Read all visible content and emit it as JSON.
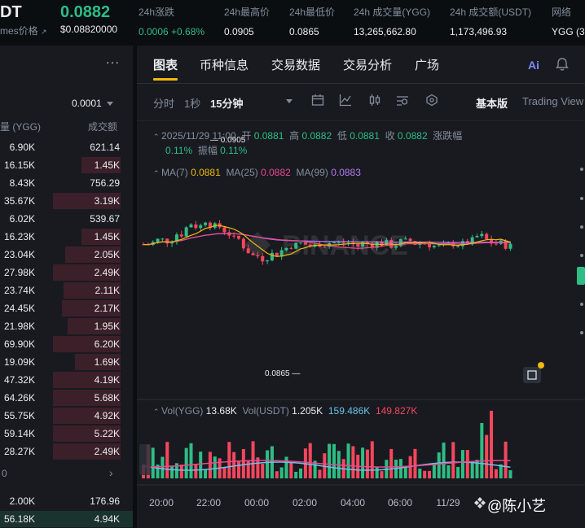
{
  "ticker": {
    "symbol": "DT",
    "subname": "mes价格",
    "price": "0.0882",
    "price_usd": "$0.08820000",
    "stats": [
      {
        "label": "24h涨跌",
        "value": "0.0006 +0.68%",
        "green": true
      },
      {
        "label": "24h最高价",
        "value": "0.0905"
      },
      {
        "label": "24h最低价",
        "value": "0.0865"
      },
      {
        "label": "24h 成交量(YGG)",
        "value": "13,265,662.80"
      },
      {
        "label": "24h 成交额(USDT)",
        "value": "1,173,496.93"
      },
      {
        "label": "网络",
        "value": "YGG (3"
      }
    ]
  },
  "orderbook": {
    "menu": "···",
    "precision": "0.0001",
    "header_qty": "量 (YGG)",
    "header_total": "成交额",
    "asks": [
      {
        "qty": "6.90K",
        "total": "621.14",
        "depth": 0
      },
      {
        "qty": "16.15K",
        "total": "1.45K",
        "depth": 0.58
      },
      {
        "qty": "8.43K",
        "total": "756.29",
        "depth": 0
      },
      {
        "qty": "35.67K",
        "total": "3.19K",
        "depth": 1
      },
      {
        "qty": "6.02K",
        "total": "539.67",
        "depth": 0
      },
      {
        "qty": "16.23K",
        "total": "1.45K",
        "depth": 0.58
      },
      {
        "qty": "23.04K",
        "total": "2.05K",
        "depth": 0.82
      },
      {
        "qty": "27.98K",
        "total": "2.49K",
        "depth": 1
      },
      {
        "qty": "23.74K",
        "total": "2.11K",
        "depth": 0.84
      },
      {
        "qty": "24.45K",
        "total": "2.17K",
        "depth": 0.87
      },
      {
        "qty": "21.98K",
        "total": "1.95K",
        "depth": 0.78
      },
      {
        "qty": "69.90K",
        "total": "6.20K",
        "depth": 1
      },
      {
        "qty": "19.09K",
        "total": "1.69K",
        "depth": 0.68
      },
      {
        "qty": "47.32K",
        "total": "4.19K",
        "depth": 1
      },
      {
        "qty": "64.26K",
        "total": "5.68K",
        "depth": 1
      },
      {
        "qty": "55.75K",
        "total": "4.92K",
        "depth": 1
      },
      {
        "qty": "59.14K",
        "total": "5.22K",
        "depth": 1
      },
      {
        "qty": "28.27K",
        "total": "2.49K",
        "depth": 1
      }
    ],
    "mid_label": "0",
    "mid_chevron": "›",
    "bids": [
      {
        "qty": "2.00K",
        "total": "176.96",
        "depth": 0
      },
      {
        "qty": "56.18K",
        "total": "4.94K",
        "depth": 1
      }
    ]
  },
  "tabs": [
    "图表",
    "币种信息",
    "交易数据",
    "交易分析",
    "广场"
  ],
  "ai_label": "Ai",
  "toolbar": {
    "intervals": [
      "分时",
      "1秒",
      "15分钟"
    ],
    "active_interval": "15分钟",
    "mode_basic": "基本版",
    "mode_tv": "Trading View"
  },
  "candle_info": {
    "time": "2025/11/29 11:00",
    "open_label": "开",
    "open": "0.0881",
    "high_label": "高",
    "high": "0.0882",
    "low_label": "低",
    "low": "0.0881",
    "close_label": "收",
    "close": "0.0882",
    "change_label": "涨跌幅",
    "change": "0.11%",
    "amp_label": "振幅",
    "amp": "0.11%"
  },
  "ma": {
    "ma7_label": "MA(7)",
    "ma7": "0.0881",
    "ma25_label": "MA(25)",
    "ma25": "0.0882",
    "ma99_label": "MA(99)",
    "ma99": "0.0883"
  },
  "price_annotations": {
    "high": "0.0905",
    "low": "0.0865"
  },
  "volume_info": {
    "vol_ygg_label": "Vol(YGG)",
    "vol_ygg": "13.68K",
    "vol_usdt_label": "Vol(USDT)",
    "vol_usdt": "1.205K",
    "ma1": "159.486K",
    "ma2": "149.827K"
  },
  "time_axis": [
    "20:00",
    "22:00",
    "00:00",
    "02:00",
    "04:00",
    "06:00",
    "11/29"
  ],
  "watermark": "@陈小艺",
  "colors": {
    "up": "#2ebd85",
    "down": "#f6465d",
    "accent": "#f0b90b"
  }
}
